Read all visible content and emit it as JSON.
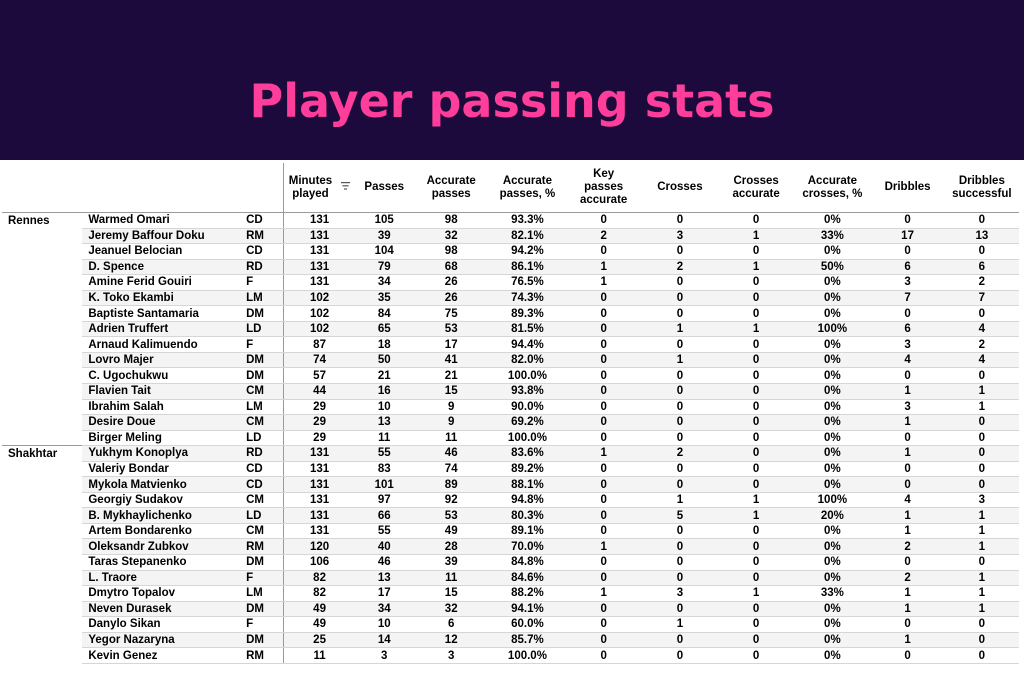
{
  "title": "Player passing stats",
  "colors": {
    "banner_bg": "#1d0a3c",
    "title": "#ff3d9a"
  },
  "columns": {
    "minutes_line1": "Minutes",
    "minutes_line2": "played",
    "passes": "Passes",
    "acc_passes_line1": "Accurate",
    "acc_passes_line2": "passes",
    "acc_passes_pct_line1": "Accurate",
    "acc_passes_pct_line2": "passes, %",
    "key_passes_line1": "Key",
    "key_passes_line2": "passes",
    "key_passes_line3": "accurate",
    "crosses": "Crosses",
    "crosses_acc_line1": "Crosses",
    "crosses_acc_line2": "accurate",
    "acc_crosses_pct_line1": "Accurate",
    "acc_crosses_pct_line2": "crosses, %",
    "dribbles": "Dribbles",
    "dribbles_succ_line1": "Dribbles",
    "dribbles_succ_line2": "successful"
  },
  "sort_icon": "sort-descending-icon",
  "rows": [
    {
      "team": "Rennes",
      "player": "Warmed Omari",
      "pos": "CD",
      "min": "131",
      "passes": "105",
      "acc": "98",
      "accp": "93.3%",
      "key": "0",
      "crosses": "0",
      "cacc": "0",
      "caccp": "0%",
      "drib": "0",
      "dsucc": "0"
    },
    {
      "team": "",
      "player": "Jeremy Baffour Doku",
      "pos": "RM",
      "min": "131",
      "passes": "39",
      "acc": "32",
      "accp": "82.1%",
      "key": "2",
      "crosses": "3",
      "cacc": "1",
      "caccp": "33%",
      "drib": "17",
      "dsucc": "13"
    },
    {
      "team": "",
      "player": "Jeanuel Belocian",
      "pos": "CD",
      "min": "131",
      "passes": "104",
      "acc": "98",
      "accp": "94.2%",
      "key": "0",
      "crosses": "0",
      "cacc": "0",
      "caccp": "0%",
      "drib": "0",
      "dsucc": "0"
    },
    {
      "team": "",
      "player": "D. Spence",
      "pos": "RD",
      "min": "131",
      "passes": "79",
      "acc": "68",
      "accp": "86.1%",
      "key": "1",
      "crosses": "2",
      "cacc": "1",
      "caccp": "50%",
      "drib": "6",
      "dsucc": "6"
    },
    {
      "team": "",
      "player": "Amine Ferid Gouiri",
      "pos": "F",
      "min": "131",
      "passes": "34",
      "acc": "26",
      "accp": "76.5%",
      "key": "1",
      "crosses": "0",
      "cacc": "0",
      "caccp": "0%",
      "drib": "3",
      "dsucc": "2"
    },
    {
      "team": "",
      "player": "K. Toko Ekambi",
      "pos": "LM",
      "min": "102",
      "passes": "35",
      "acc": "26",
      "accp": "74.3%",
      "key": "0",
      "crosses": "0",
      "cacc": "0",
      "caccp": "0%",
      "drib": "7",
      "dsucc": "7"
    },
    {
      "team": "",
      "player": "Baptiste Santamaria",
      "pos": "DM",
      "min": "102",
      "passes": "84",
      "acc": "75",
      "accp": "89.3%",
      "key": "0",
      "crosses": "0",
      "cacc": "0",
      "caccp": "0%",
      "drib": "0",
      "dsucc": "0"
    },
    {
      "team": "",
      "player": "Adrien Truffert",
      "pos": "LD",
      "min": "102",
      "passes": "65",
      "acc": "53",
      "accp": "81.5%",
      "key": "0",
      "crosses": "1",
      "cacc": "1",
      "caccp": "100%",
      "drib": "6",
      "dsucc": "4"
    },
    {
      "team": "",
      "player": "Arnaud Kalimuendo",
      "pos": "F",
      "min": "87",
      "passes": "18",
      "acc": "17",
      "accp": "94.4%",
      "key": "0",
      "crosses": "0",
      "cacc": "0",
      "caccp": "0%",
      "drib": "3",
      "dsucc": "2"
    },
    {
      "team": "",
      "player": "Lovro Majer",
      "pos": "DM",
      "min": "74",
      "passes": "50",
      "acc": "41",
      "accp": "82.0%",
      "key": "0",
      "crosses": "1",
      "cacc": "0",
      "caccp": "0%",
      "drib": "4",
      "dsucc": "4"
    },
    {
      "team": "",
      "player": "C. Ugochukwu",
      "pos": "DM",
      "min": "57",
      "passes": "21",
      "acc": "21",
      "accp": "100.0%",
      "key": "0",
      "crosses": "0",
      "cacc": "0",
      "caccp": "0%",
      "drib": "0",
      "dsucc": "0"
    },
    {
      "team": "",
      "player": "Flavien Tait",
      "pos": "CM",
      "min": "44",
      "passes": "16",
      "acc": "15",
      "accp": "93.8%",
      "key": "0",
      "crosses": "0",
      "cacc": "0",
      "caccp": "0%",
      "drib": "1",
      "dsucc": "1"
    },
    {
      "team": "",
      "player": "Ibrahim Salah",
      "pos": "LM",
      "min": "29",
      "passes": "10",
      "acc": "9",
      "accp": "90.0%",
      "key": "0",
      "crosses": "0",
      "cacc": "0",
      "caccp": "0%",
      "drib": "3",
      "dsucc": "1"
    },
    {
      "team": "",
      "player": "Desire Doue",
      "pos": "CM",
      "min": "29",
      "passes": "13",
      "acc": "9",
      "accp": "69.2%",
      "key": "0",
      "crosses": "0",
      "cacc": "0",
      "caccp": "0%",
      "drib": "1",
      "dsucc": "0"
    },
    {
      "team": "",
      "player": "Birger Meling",
      "pos": "LD",
      "min": "29",
      "passes": "11",
      "acc": "11",
      "accp": "100.0%",
      "key": "0",
      "crosses": "0",
      "cacc": "0",
      "caccp": "0%",
      "drib": "0",
      "dsucc": "0"
    },
    {
      "team": "Shakhtar",
      "player": "Yukhym Konoplya",
      "pos": "RD",
      "min": "131",
      "passes": "55",
      "acc": "46",
      "accp": "83.6%",
      "key": "1",
      "crosses": "2",
      "cacc": "0",
      "caccp": "0%",
      "drib": "1",
      "dsucc": "0"
    },
    {
      "team": "",
      "player": "Valeriy Bondar",
      "pos": "CD",
      "min": "131",
      "passes": "83",
      "acc": "74",
      "accp": "89.2%",
      "key": "0",
      "crosses": "0",
      "cacc": "0",
      "caccp": "0%",
      "drib": "0",
      "dsucc": "0"
    },
    {
      "team": "",
      "player": "Mykola Matvienko",
      "pos": "CD",
      "min": "131",
      "passes": "101",
      "acc": "89",
      "accp": "88.1%",
      "key": "0",
      "crosses": "0",
      "cacc": "0",
      "caccp": "0%",
      "drib": "0",
      "dsucc": "0"
    },
    {
      "team": "",
      "player": "Georgiy Sudakov",
      "pos": "CM",
      "min": "131",
      "passes": "97",
      "acc": "92",
      "accp": "94.8%",
      "key": "0",
      "crosses": "1",
      "cacc": "1",
      "caccp": "100%",
      "drib": "4",
      "dsucc": "3"
    },
    {
      "team": "",
      "player": "B. Mykhaylichenko",
      "pos": "LD",
      "min": "131",
      "passes": "66",
      "acc": "53",
      "accp": "80.3%",
      "key": "0",
      "crosses": "5",
      "cacc": "1",
      "caccp": "20%",
      "drib": "1",
      "dsucc": "1"
    },
    {
      "team": "",
      "player": "Artem Bondarenko",
      "pos": "CM",
      "min": "131",
      "passes": "55",
      "acc": "49",
      "accp": "89.1%",
      "key": "0",
      "crosses": "0",
      "cacc": "0",
      "caccp": "0%",
      "drib": "1",
      "dsucc": "1"
    },
    {
      "team": "",
      "player": "Oleksandr Zubkov",
      "pos": "RM",
      "min": "120",
      "passes": "40",
      "acc": "28",
      "accp": "70.0%",
      "key": "1",
      "crosses": "0",
      "cacc": "0",
      "caccp": "0%",
      "drib": "2",
      "dsucc": "1"
    },
    {
      "team": "",
      "player": "Taras Stepanenko",
      "pos": "DM",
      "min": "106",
      "passes": "46",
      "acc": "39",
      "accp": "84.8%",
      "key": "0",
      "crosses": "0",
      "cacc": "0",
      "caccp": "0%",
      "drib": "0",
      "dsucc": "0"
    },
    {
      "team": "",
      "player": "L. Traore",
      "pos": "F",
      "min": "82",
      "passes": "13",
      "acc": "11",
      "accp": "84.6%",
      "key": "0",
      "crosses": "0",
      "cacc": "0",
      "caccp": "0%",
      "drib": "2",
      "dsucc": "1"
    },
    {
      "team": "",
      "player": "Dmytro Topalov",
      "pos": "LM",
      "min": "82",
      "passes": "17",
      "acc": "15",
      "accp": "88.2%",
      "key": "1",
      "crosses": "3",
      "cacc": "1",
      "caccp": "33%",
      "drib": "1",
      "dsucc": "1"
    },
    {
      "team": "",
      "player": "Neven Durasek",
      "pos": "DM",
      "min": "49",
      "passes": "34",
      "acc": "32",
      "accp": "94.1%",
      "key": "0",
      "crosses": "0",
      "cacc": "0",
      "caccp": "0%",
      "drib": "1",
      "dsucc": "1"
    },
    {
      "team": "",
      "player": "Danylo Sikan",
      "pos": "F",
      "min": "49",
      "passes": "10",
      "acc": "6",
      "accp": "60.0%",
      "key": "0",
      "crosses": "1",
      "cacc": "0",
      "caccp": "0%",
      "drib": "0",
      "dsucc": "0"
    },
    {
      "team": "",
      "player": "Yegor Nazaryna",
      "pos": "DM",
      "min": "25",
      "passes": "14",
      "acc": "12",
      "accp": "85.7%",
      "key": "0",
      "crosses": "0",
      "cacc": "0",
      "caccp": "0%",
      "drib": "1",
      "dsucc": "0"
    },
    {
      "team": "",
      "player": "Kevin Genez",
      "pos": "RM",
      "min": "11",
      "passes": "3",
      "acc": "3",
      "accp": "100.0%",
      "key": "0",
      "crosses": "0",
      "cacc": "0",
      "caccp": "0%",
      "drib": "0",
      "dsucc": "0"
    }
  ]
}
